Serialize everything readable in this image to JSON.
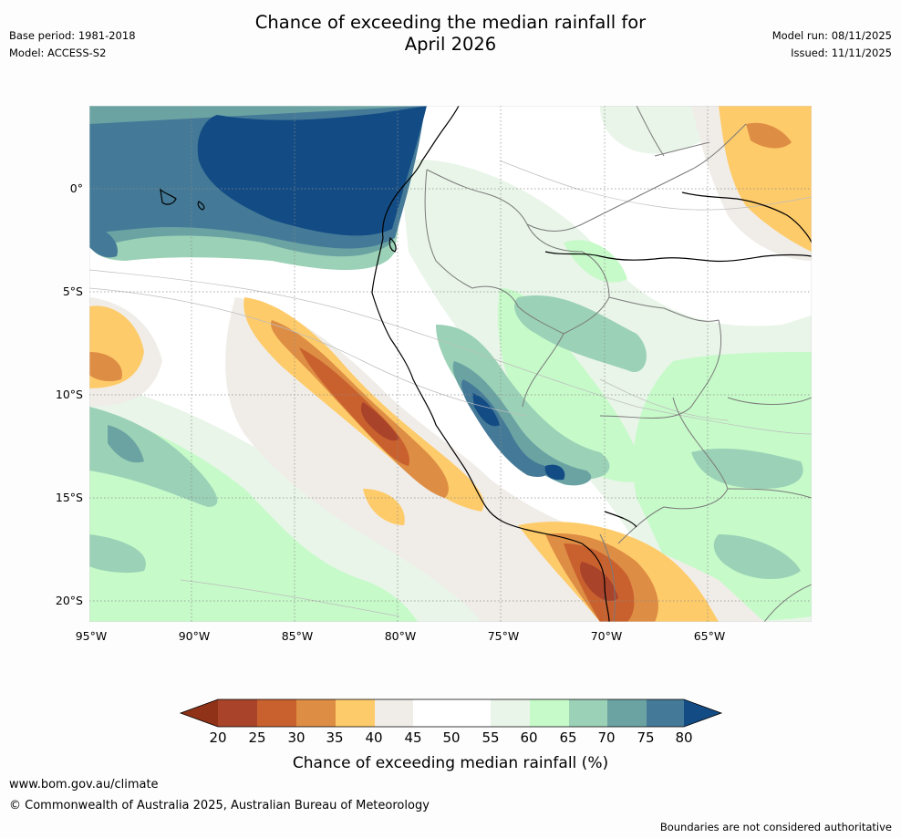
{
  "header": {
    "title_line1": "Chance of exceeding the median rainfall for",
    "title_line2": "April 2026",
    "base_period": "Base period: 1981-2018",
    "model": "Model: ACCESS-S2",
    "model_run": "Model run: 08/11/2025",
    "issued": "Issued: 11/11/2025"
  },
  "map": {
    "lat_labels": [
      "0°",
      "5°S",
      "10°S",
      "15°S",
      "20°S"
    ],
    "lon_labels": [
      "95°W",
      "90°W",
      "85°W",
      "80°W",
      "75°W",
      "70°W",
      "65°W"
    ]
  },
  "legend": {
    "ticks": [
      "20",
      "25",
      "30",
      "35",
      "40",
      "45",
      "50",
      "55",
      "60",
      "65",
      "70",
      "75",
      "80"
    ],
    "label": "Chance of exceeding median rainfall (%)",
    "colors": [
      "#8f3218",
      "#a9432a",
      "#c9612f",
      "#de8e44",
      "#fecb6a",
      "#f0ede8",
      "#ffffff",
      "#ffffff",
      "#e8f5e8",
      "#c6fac9",
      "#9bd1b6",
      "#6ba3a3",
      "#447a97",
      "#134c85"
    ]
  },
  "footer": {
    "website": "www.bom.gov.au/climate",
    "copyright": "© Commonwealth of Australia 2025, Australian Bureau of Meteorology",
    "disclaimer": "Boundaries are not considered authoritative"
  }
}
